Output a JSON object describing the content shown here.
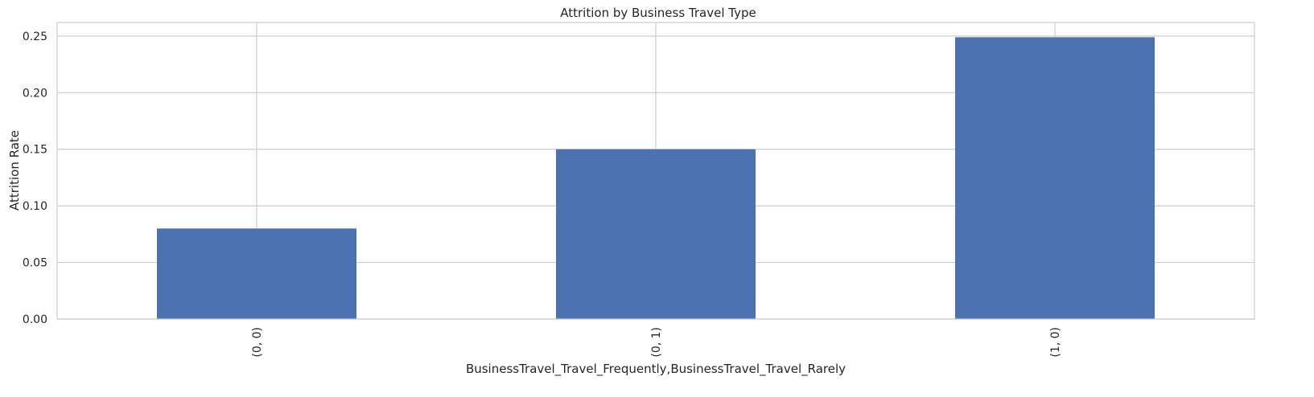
{
  "chart_data": {
    "type": "bar",
    "title": "Attrition by Business Travel Type",
    "xlabel": "BusinessTravel_Travel_Frequently,BusinessTravel_Travel_Rarely",
    "ylabel": "Attrition Rate",
    "categories": [
      "(0, 0)",
      "(0, 1)",
      "(1, 0)"
    ],
    "values": [
      0.08,
      0.15,
      0.249
    ],
    "ylim": [
      0,
      0.262
    ],
    "yticks": [
      0.0,
      0.05,
      0.1,
      0.15,
      0.2,
      0.25
    ],
    "ytick_labels": [
      "0.00",
      "0.05",
      "0.10",
      "0.15",
      "0.20",
      "0.25"
    ],
    "grid": true,
    "x_tick_rotation": "vertical",
    "colors": {
      "bar": "#4c72b0",
      "grid": "#cccccc",
      "frame": "#cccccc",
      "text": "#262626"
    }
  }
}
